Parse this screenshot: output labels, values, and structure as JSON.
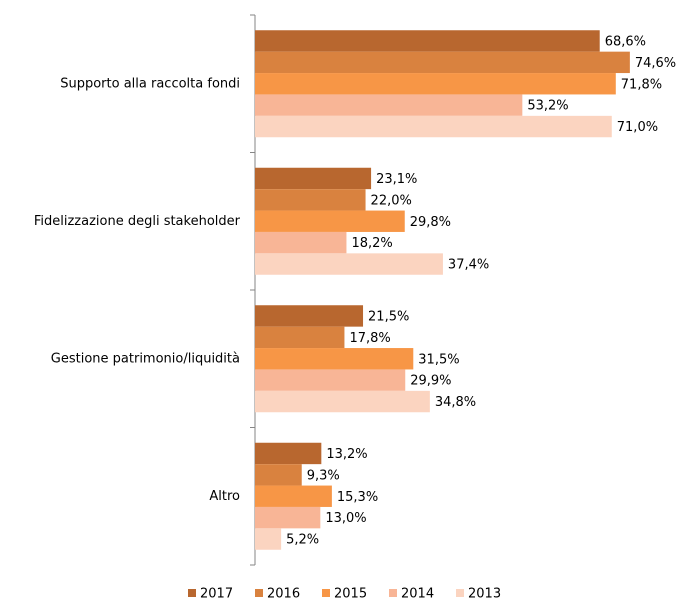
{
  "chart_data": {
    "type": "bar",
    "orientation": "horizontal",
    "categories": [
      "Supporto alla raccolta fondi",
      "Fidelizzazione degli stakeholder",
      "Gestione patrimonio/liquidità",
      "Altro"
    ],
    "xlim": [
      0,
      80
    ],
    "series": [
      {
        "name": "2017",
        "color": "#b8672f",
        "values": [
          68.6,
          23.1,
          21.5,
          13.2
        ],
        "value_labels": [
          "68,6%",
          "23,1%",
          "21,5%",
          "13,2%"
        ]
      },
      {
        "name": "2016",
        "color": "#d9823f",
        "values": [
          74.6,
          22.0,
          17.8,
          9.3
        ],
        "value_labels": [
          "74,6%",
          "22,0%",
          "17,8%",
          "9,3%"
        ]
      },
      {
        "name": "2015",
        "color": "#f79646",
        "values": [
          71.8,
          29.8,
          31.5,
          15.3
        ],
        "value_labels": [
          "71,8%",
          "29,8%",
          "31,5%",
          "15,3%"
        ]
      },
      {
        "name": "2014",
        "color": "#f8b596",
        "values": [
          53.2,
          18.2,
          29.9,
          13.0
        ],
        "value_labels": [
          "53,2%",
          "18,2%",
          "29,9%",
          "13,0%"
        ]
      },
      {
        "name": "2013",
        "color": "#fbd4c0",
        "values": [
          71.0,
          37.4,
          34.8,
          5.2
        ],
        "value_labels": [
          "71,0%",
          "37,4%",
          "34,8%",
          "5,2%"
        ]
      }
    ],
    "legend": "bottom"
  }
}
